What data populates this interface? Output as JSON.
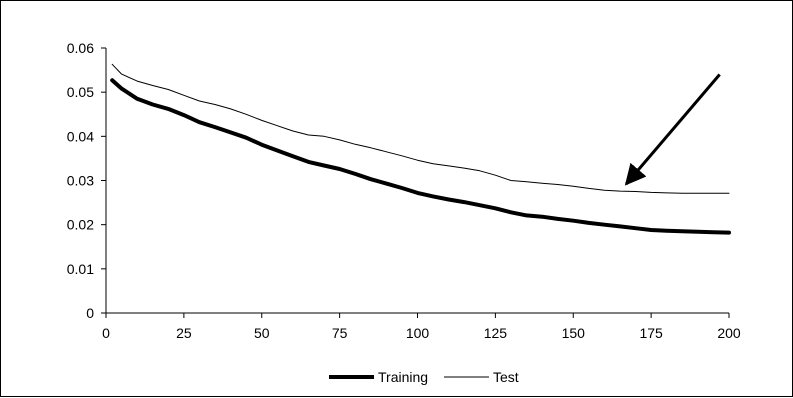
{
  "chart_data": {
    "type": "line",
    "title": "",
    "xlabel": "",
    "ylabel": "",
    "xlim": [
      0,
      200
    ],
    "ylim": [
      0,
      0.06
    ],
    "x_ticks": [
      0,
      25,
      50,
      75,
      100,
      125,
      150,
      175,
      200
    ],
    "y_ticks": [
      0,
      0.01,
      0.02,
      0.03,
      0.04,
      0.05,
      0.06
    ],
    "x_tick_labels": [
      "0",
      "25",
      "50",
      "75",
      "100",
      "125",
      "150",
      "175",
      "200"
    ],
    "y_tick_labels": [
      "0",
      "0.01",
      "0.02",
      "0.03",
      "0.04",
      "0.05",
      "0.06"
    ],
    "grid": false,
    "legend": {
      "position": "bottom-center"
    },
    "x": [
      2,
      5,
      10,
      15,
      20,
      25,
      30,
      35,
      40,
      45,
      50,
      55,
      60,
      65,
      70,
      75,
      80,
      85,
      90,
      95,
      100,
      105,
      110,
      115,
      120,
      125,
      130,
      135,
      140,
      145,
      150,
      155,
      160,
      165,
      170,
      175,
      180,
      185,
      190,
      195,
      200
    ],
    "series": [
      {
        "name": "Training",
        "color": "#000000",
        "line_width": "thick",
        "values": [
          0.0527,
          0.0508,
          0.0485,
          0.0472,
          0.0462,
          0.0448,
          0.0432,
          0.0421,
          0.0409,
          0.0397,
          0.0381,
          0.0368,
          0.0355,
          0.0342,
          0.0334,
          0.0326,
          0.0315,
          0.0303,
          0.0293,
          0.0283,
          0.0272,
          0.0264,
          0.0257,
          0.0251,
          0.0244,
          0.0237,
          0.0228,
          0.0221,
          0.0218,
          0.0213,
          0.0209,
          0.0204,
          0.02,
          0.0196,
          0.0192,
          0.0188,
          0.0186,
          0.0185,
          0.0184,
          0.0183,
          0.0182
        ]
      },
      {
        "name": "Test",
        "color": "#000000",
        "line_width": "thin",
        "values": [
          0.0563,
          0.0541,
          0.0525,
          0.0515,
          0.0506,
          0.0493,
          0.048,
          0.0472,
          0.0462,
          0.045,
          0.0436,
          0.0424,
          0.0412,
          0.0403,
          0.04,
          0.0392,
          0.0382,
          0.0374,
          0.0365,
          0.0356,
          0.0346,
          0.0338,
          0.0333,
          0.0328,
          0.0322,
          0.0312,
          0.03,
          0.0297,
          0.0294,
          0.0291,
          0.0287,
          0.0282,
          0.0278,
          0.0276,
          0.0275,
          0.0273,
          0.0272,
          0.0271,
          0.0271,
          0.0271,
          0.0271
        ]
      }
    ],
    "annotations": [
      {
        "type": "arrow",
        "from": [
          197,
          0.054
        ],
        "to": [
          167,
          0.0292
        ]
      }
    ]
  }
}
